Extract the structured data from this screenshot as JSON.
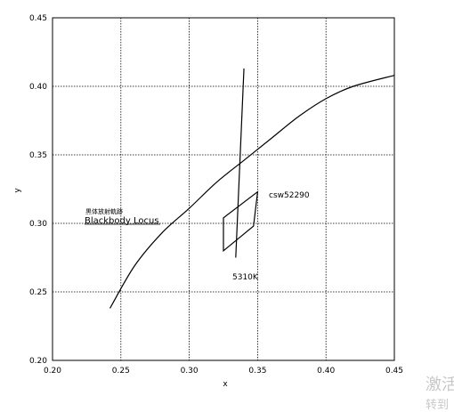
{
  "chart_data": {
    "type": "line",
    "xlabel": "x",
    "ylabel": "y",
    "xlim": [
      0.2,
      0.45
    ],
    "ylim": [
      0.2,
      0.45
    ],
    "x_ticks": [
      "0.20",
      "0.25",
      "0.30",
      "0.35",
      "0.40",
      "0.45"
    ],
    "y_ticks": [
      "0.20",
      "0.25",
      "0.30",
      "0.35",
      "0.40",
      "0.45"
    ],
    "grid": true,
    "series": [
      {
        "name": "黒体放射軌跡 Blackbody Locus",
        "style": "curve",
        "points": [
          [
            0.242,
            0.238
          ],
          [
            0.26,
            0.269
          ],
          [
            0.28,
            0.293
          ],
          [
            0.3,
            0.311
          ],
          [
            0.32,
            0.33
          ],
          [
            0.34,
            0.346
          ],
          [
            0.36,
            0.362
          ],
          [
            0.38,
            0.378
          ],
          [
            0.4,
            0.391
          ],
          [
            0.42,
            0.4
          ],
          [
            0.45,
            0.408
          ]
        ]
      },
      {
        "name": "",
        "style": "segment",
        "points": [
          [
            0.334,
            0.275
          ],
          [
            0.34,
            0.413
          ]
        ]
      },
      {
        "name": "",
        "style": "polygon",
        "points": [
          [
            0.325,
            0.304
          ],
          [
            0.35,
            0.323
          ],
          [
            0.347,
            0.298
          ],
          [
            0.325,
            0.28
          ]
        ]
      }
    ],
    "annotations": [
      {
        "text_jp": "黒体放射軌跡",
        "text_en": "Blackbody Locus",
        "x": 0.221,
        "y": 0.302
      },
      {
        "text": "csw52290",
        "x": 0.353,
        "y": 0.321
      },
      {
        "text": "5310K",
        "x": 0.331,
        "y": 0.26
      }
    ]
  },
  "watermark": {
    "line1": "激活",
    "line2": "转到"
  }
}
